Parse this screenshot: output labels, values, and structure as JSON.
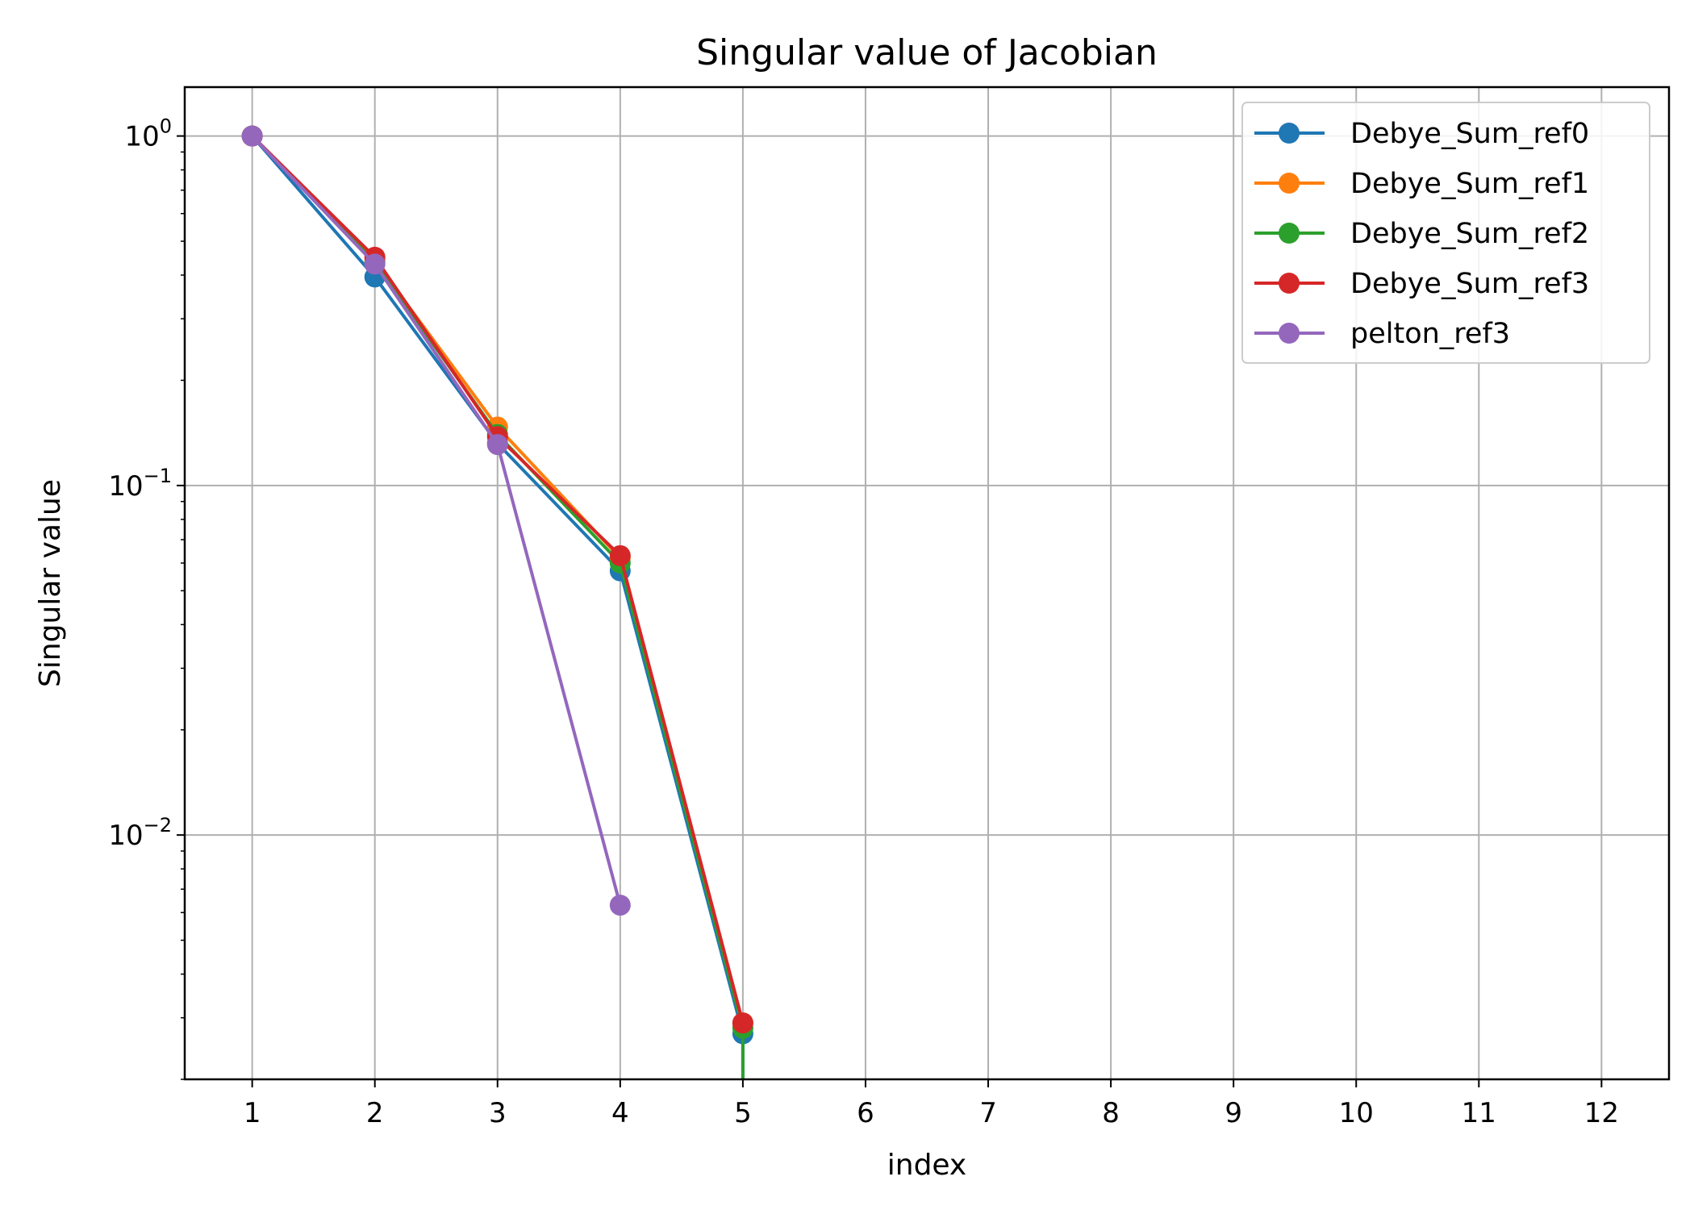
{
  "chart_data": {
    "type": "line",
    "title": "Singular value of Jacobian",
    "xlabel": "index",
    "ylabel": "Singular value",
    "y_scale": "log",
    "grid": true,
    "legend_position": "top-right",
    "xlim": [
      0.45,
      12.55
    ],
    "ylim": [
      0.002,
      1.38
    ],
    "x_ticks": [
      1,
      2,
      3,
      4,
      5,
      6,
      7,
      8,
      9,
      10,
      11,
      12
    ],
    "y_ticks": [
      {
        "value": 1,
        "base": "10",
        "exp": "0"
      },
      {
        "value": 0.1,
        "base": "10",
        "exp": "−1"
      },
      {
        "value": 0.01,
        "base": "10",
        "exp": "−2"
      }
    ],
    "series": [
      {
        "name": "Debye_Sum_ref0",
        "color": "#1f77b4",
        "x": [
          1,
          2,
          3,
          4,
          5
        ],
        "y": [
          1.0,
          0.395,
          0.132,
          0.057,
          0.0027
        ],
        "tail_x": 5,
        "tail_y": 0.0019
      },
      {
        "name": "Debye_Sum_ref1",
        "color": "#ff7f0e",
        "x": [
          1,
          2,
          3,
          4,
          5
        ],
        "y": [
          1.0,
          0.44,
          0.147,
          0.062,
          0.0029
        ]
      },
      {
        "name": "Debye_Sum_ref2",
        "color": "#2ca02c",
        "x": [
          1,
          2,
          3,
          4,
          5
        ],
        "y": [
          1.0,
          0.435,
          0.14,
          0.06,
          0.0028
        ],
        "tail_x": 5,
        "tail_y": 0.0019
      },
      {
        "name": "Debye_Sum_ref3",
        "color": "#d62728",
        "x": [
          1,
          2,
          3,
          4,
          5
        ],
        "y": [
          1.0,
          0.45,
          0.138,
          0.063,
          0.0029
        ]
      },
      {
        "name": "pelton_ref3",
        "color": "#9467bd",
        "x": [
          1,
          2,
          3,
          4
        ],
        "y": [
          1.0,
          0.43,
          0.131,
          0.0063
        ]
      }
    ]
  }
}
